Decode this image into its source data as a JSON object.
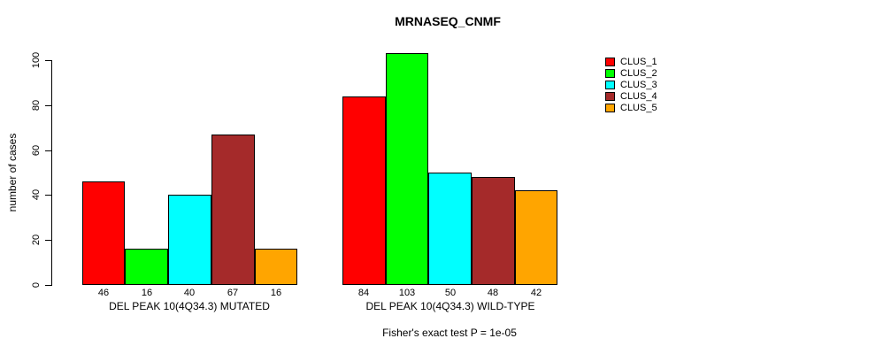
{
  "chart_data": {
    "type": "bar",
    "title": "MRNASEQ_CNMF",
    "ylabel": "number of cases",
    "xlabel": "",
    "ylim": [
      0,
      100
    ],
    "yticks": [
      0,
      20,
      40,
      60,
      80,
      100
    ],
    "grid": false,
    "legend_position": "right",
    "series": [
      {
        "name": "CLUS_1",
        "color": "#FF0000"
      },
      {
        "name": "CLUS_2",
        "color": "#00FF00"
      },
      {
        "name": "CLUS_3",
        "color": "#00FFFF"
      },
      {
        "name": "CLUS_4",
        "color": "#A52A2A"
      },
      {
        "name": "CLUS_5",
        "color": "#FFA500"
      }
    ],
    "groups": [
      {
        "label": "DEL PEAK 10(4Q34.3) MUTATED",
        "values": [
          46,
          16,
          40,
          67,
          16
        ]
      },
      {
        "label": "DEL PEAK 10(4Q34.3) WILD-TYPE",
        "values": [
          84,
          103,
          50,
          48,
          42
        ]
      }
    ],
    "annotation": "Fisher's exact test P = 1e-05",
    "bar_border_color": "#000000",
    "background_color": "#FFFFFF",
    "text_color": "#000000"
  }
}
